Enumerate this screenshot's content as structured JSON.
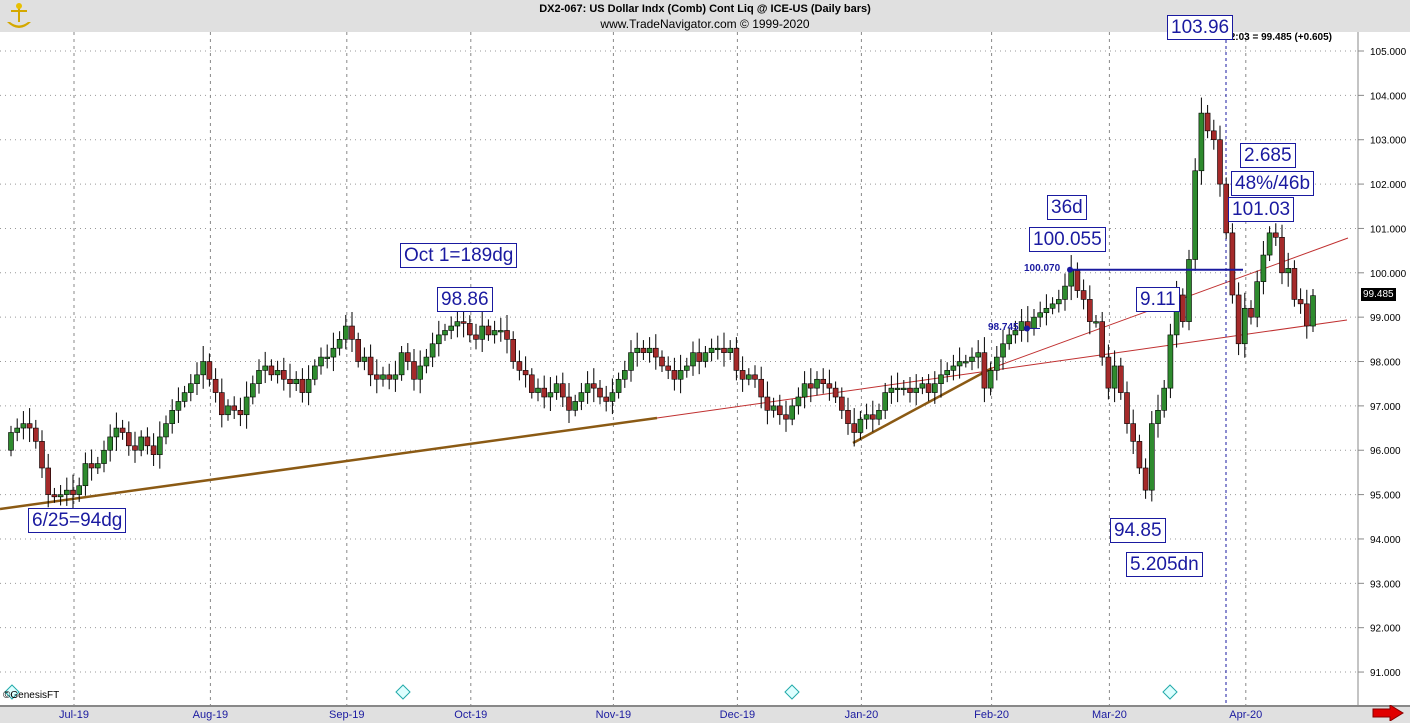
{
  "header": {
    "title": "DX2-067:  US Dollar Indx (Comb) Cont Liq @ ICE-US  (Daily bars)",
    "subtitle": "www.TradeNavigator.com © 1999-2020",
    "readout": "4/15/20 12:03 = 99.485 (+0.605)",
    "copyright": "©GenesisFT"
  },
  "chart_data": {
    "type": "candlestick",
    "title": "US Dollar Indx (Comb) Cont Liq @ ICE-US (Daily bars)",
    "ylim": [
      90.5,
      105.4
    ],
    "y_ticks": [
      "105.000",
      "104.000",
      "103.000",
      "102.000",
      "101.000",
      "100.000",
      "99.000",
      "98.000",
      "97.000",
      "96.000",
      "95.000",
      "94.000",
      "93.000",
      "92.000",
      "91.000"
    ],
    "x_ticks": [
      "Jul-19",
      "Aug-19",
      "Sep-19",
      "Oct-19",
      "Nov-19",
      "Dec-19",
      "Jan-20",
      "Feb-20",
      "Mar-20",
      "Apr-20"
    ],
    "month_start_index": [
      10,
      32,
      54,
      74,
      97,
      117,
      137,
      158,
      177,
      199
    ],
    "first_open": 96.0,
    "closes": [
      96.4,
      96.5,
      96.6,
      96.5,
      96.2,
      95.6,
      95.0,
      94.95,
      95.0,
      95.1,
      95.0,
      95.2,
      95.7,
      95.6,
      95.7,
      96.0,
      96.3,
      96.5,
      96.4,
      96.1,
      96.0,
      96.3,
      96.1,
      95.9,
      96.3,
      96.6,
      96.9,
      97.1,
      97.3,
      97.5,
      97.7,
      98.0,
      97.6,
      97.3,
      96.8,
      97.0,
      96.9,
      96.8,
      97.2,
      97.5,
      97.8,
      97.9,
      97.7,
      97.8,
      97.6,
      97.5,
      97.6,
      97.3,
      97.6,
      97.9,
      98.1,
      98.1,
      98.3,
      98.5,
      98.8,
      98.5,
      98.0,
      98.1,
      97.7,
      97.6,
      97.7,
      97.6,
      97.7,
      98.2,
      98.0,
      97.6,
      97.9,
      98.1,
      98.4,
      98.6,
      98.7,
      98.8,
      98.9,
      98.86,
      98.6,
      98.5,
      98.8,
      98.6,
      98.7,
      98.7,
      98.5,
      98.0,
      97.8,
      97.7,
      97.3,
      97.4,
      97.2,
      97.3,
      97.5,
      97.2,
      96.9,
      97.1,
      97.3,
      97.5,
      97.4,
      97.2,
      97.1,
      97.3,
      97.6,
      97.8,
      98.2,
      98.3,
      98.2,
      98.3,
      98.1,
      97.9,
      97.8,
      97.6,
      97.8,
      97.9,
      98.2,
      98.0,
      98.2,
      98.3,
      98.3,
      98.2,
      98.3,
      97.8,
      97.6,
      97.7,
      97.6,
      97.2,
      96.9,
      97.0,
      96.8,
      96.7,
      97.0,
      97.2,
      97.5,
      97.4,
      97.6,
      97.5,
      97.4,
      97.2,
      96.9,
      96.6,
      96.4,
      96.7,
      96.8,
      96.7,
      96.9,
      97.3,
      97.4,
      97.4,
      97.4,
      97.3,
      97.4,
      97.5,
      97.3,
      97.5,
      97.7,
      97.8,
      97.9,
      98.0,
      98.0,
      98.1,
      98.2,
      97.4,
      97.8,
      98.1,
      98.4,
      98.6,
      98.7,
      98.9,
      98.75,
      99.0,
      99.1,
      99.2,
      99.3,
      99.4,
      99.7,
      100.05,
      99.6,
      99.4,
      98.9,
      98.9,
      98.1,
      97.4,
      97.9,
      97.3,
      96.6,
      96.2,
      95.6,
      95.1,
      96.6,
      96.9,
      97.4,
      98.6,
      99.5,
      98.9,
      100.3,
      102.3,
      103.6,
      103.2,
      103.0,
      102.0,
      100.9,
      99.5,
      98.4,
      99.2,
      99.0,
      99.8,
      100.4,
      100.9,
      100.8,
      100.0,
      100.1,
      99.4,
      99.3,
      98.8,
      99.485
    ]
  },
  "annotations": {
    "hi_label": "103.96",
    "range": "2.685",
    "retrace": "48%/46b",
    "peak2": "101.03",
    "days36": "36d",
    "feb_high": "100.055",
    "oct_cycle": "Oct 1=189dg",
    "oct_high": "98.86",
    "rally": "9.11",
    "mar_low": "94.85",
    "drop": "5.205dn",
    "jun_cycle": "6/25=94dg",
    "level1": "100.070",
    "level2": "98.745"
  },
  "last_price": "99.485",
  "colors": {
    "up": "#2e8b2e",
    "down": "#a52a2a",
    "trend": "#8b5a14",
    "trend_ext": "#c03030",
    "annot": "#1a1aa0"
  }
}
